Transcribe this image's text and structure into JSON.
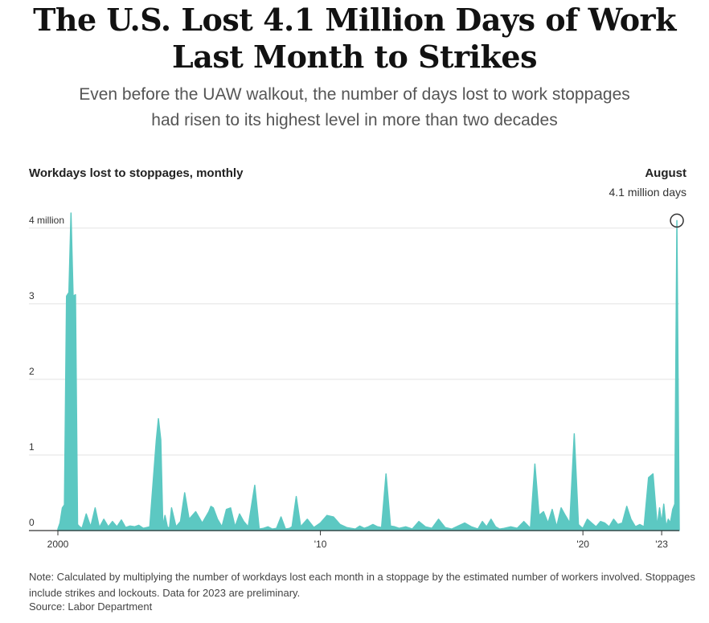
{
  "title": "The U.S. Lost 4.1 Million Days of Work Last Month to Strikes",
  "subtitle": "Even before the UAW walkout, the number of days lost to work stoppages had risen to its highest level in more than two decades",
  "note": "Note: Calculated by multiplying the number of workdays lost each month in a stoppage by the estimated number of workers involved. Stoppages include strikes and lockouts. Data for 2023 are preliminary.",
  "source": "Source: Labor Department",
  "colors": {
    "area": "#5cc8c2",
    "grid": "#e3e3e3",
    "axis": "#333333"
  },
  "chart_data": {
    "type": "area",
    "ylabel": "Workdays lost to stoppages, monthly",
    "ylim": [
      0,
      4.2
    ],
    "yticks": [
      0,
      1,
      2,
      3,
      4
    ],
    "ytick_labels": [
      "0",
      "1",
      "2",
      "3",
      "4 million"
    ],
    "xlim": [
      2000.0,
      2023.67
    ],
    "xticks": [
      2000,
      2010,
      2020,
      2023
    ],
    "xtick_labels": [
      "2000",
      "'10",
      "'20",
      "'23"
    ],
    "grid": true,
    "annotation": {
      "label": "August",
      "value_text": "4.1 million days",
      "x": 2023.58,
      "y": 4.1
    },
    "x": [
      2000.0,
      2000.08,
      2000.17,
      2000.25,
      2000.33,
      2000.42,
      2000.5,
      2000.58,
      2000.67,
      2000.75,
      2000.83,
      2000.92,
      2001.08,
      2001.25,
      2001.42,
      2001.58,
      2001.75,
      2001.92,
      2002.08,
      2002.25,
      2002.42,
      2002.58,
      2002.75,
      2002.92,
      2003.08,
      2003.25,
      2003.5,
      2003.75,
      2003.83,
      2003.92,
      2004.0,
      2004.08,
      2004.17,
      2004.25,
      2004.33,
      2004.5,
      2004.67,
      2004.83,
      2005.0,
      2005.25,
      2005.5,
      2005.75,
      2005.83,
      2005.92,
      2006.08,
      2006.25,
      2006.42,
      2006.58,
      2006.75,
      2006.92,
      2007.08,
      2007.25,
      2007.5,
      2007.67,
      2007.83,
      2008.0,
      2008.17,
      2008.33,
      2008.5,
      2008.67,
      2008.83,
      2008.92,
      2009.08,
      2009.25,
      2009.5,
      2009.75,
      2010.0,
      2010.25,
      2010.5,
      2010.75,
      2011.0,
      2011.17,
      2011.33,
      2011.5,
      2011.67,
      2011.83,
      2012.0,
      2012.17,
      2012.33,
      2012.5,
      2012.67,
      2012.83,
      2013.0,
      2013.25,
      2013.5,
      2013.75,
      2014.0,
      2014.25,
      2014.5,
      2014.75,
      2015.0,
      2015.25,
      2015.5,
      2015.75,
      2016.0,
      2016.17,
      2016.33,
      2016.5,
      2016.67,
      2016.83,
      2017.0,
      2017.25,
      2017.5,
      2017.75,
      2018.0,
      2018.17,
      2018.33,
      2018.5,
      2018.67,
      2018.83,
      2019.0,
      2019.17,
      2019.33,
      2019.5,
      2019.67,
      2019.83,
      2019.92,
      2020.0,
      2020.17,
      2020.33,
      2020.5,
      2020.67,
      2020.83,
      2021.0,
      2021.17,
      2021.33,
      2021.5,
      2021.67,
      2021.83,
      2022.0,
      2022.17,
      2022.33,
      2022.5,
      2022.67,
      2022.83,
      2022.92,
      2023.0,
      2023.08,
      2023.17,
      2023.25,
      2023.33,
      2023.42,
      2023.5,
      2023.58,
      2023.67
    ],
    "values": [
      0.02,
      0.1,
      0.3,
      0.34,
      3.1,
      3.15,
      4.2,
      3.1,
      3.12,
      0.08,
      0.05,
      0.03,
      0.22,
      0.05,
      0.3,
      0.04,
      0.15,
      0.05,
      0.12,
      0.05,
      0.14,
      0.04,
      0.06,
      0.05,
      0.07,
      0.03,
      0.05,
      1.2,
      1.48,
      1.2,
      0.05,
      0.2,
      0.05,
      0.03,
      0.3,
      0.05,
      0.12,
      0.5,
      0.15,
      0.25,
      0.1,
      0.25,
      0.32,
      0.3,
      0.15,
      0.05,
      0.28,
      0.3,
      0.05,
      0.22,
      0.12,
      0.05,
      0.6,
      0.02,
      0.03,
      0.05,
      0.02,
      0.03,
      0.18,
      0.02,
      0.03,
      0.05,
      0.45,
      0.05,
      0.15,
      0.04,
      0.1,
      0.2,
      0.18,
      0.08,
      0.04,
      0.03,
      0.02,
      0.06,
      0.03,
      0.05,
      0.08,
      0.05,
      0.04,
      0.75,
      0.06,
      0.05,
      0.03,
      0.05,
      0.02,
      0.12,
      0.05,
      0.03,
      0.15,
      0.04,
      0.02,
      0.06,
      0.1,
      0.05,
      0.02,
      0.12,
      0.05,
      0.15,
      0.05,
      0.02,
      0.03,
      0.05,
      0.03,
      0.12,
      0.03,
      0.88,
      0.2,
      0.25,
      0.1,
      0.28,
      0.05,
      0.3,
      0.2,
      0.1,
      1.28,
      0.08,
      0.05,
      0.03,
      0.15,
      0.1,
      0.05,
      0.12,
      0.1,
      0.05,
      0.15,
      0.08,
      0.1,
      0.32,
      0.15,
      0.05,
      0.08,
      0.05,
      0.7,
      0.75,
      0.05,
      0.3,
      0.1,
      0.35,
      0.05,
      0.15,
      0.1,
      0.28,
      0.35,
      4.1,
      0.0
    ]
  }
}
